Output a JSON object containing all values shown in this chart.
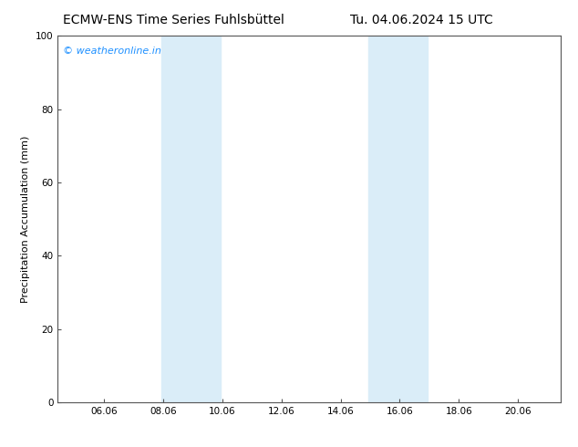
{
  "title_left": "ECMW-ENS Time Series Fuhlsbüttel",
  "title_right": "Tu. 04.06.2024 15 UTC",
  "ylabel": "Precipitation Accumulation (mm)",
  "xlim": [
    4.5,
    21.5
  ],
  "ylim": [
    0,
    100
  ],
  "yticks": [
    0,
    20,
    40,
    60,
    80,
    100
  ],
  "xticks": [
    6.06,
    8.06,
    10.06,
    12.06,
    14.06,
    16.06,
    18.06,
    20.06
  ],
  "xticklabels": [
    "06.06",
    "08.06",
    "10.06",
    "12.06",
    "14.06",
    "16.06",
    "18.06",
    "20.06"
  ],
  "shaded_bands": [
    {
      "xmin": 8.0,
      "xmax": 10.0
    },
    {
      "xmin": 15.0,
      "xmax": 17.0
    }
  ],
  "shade_color": "#daedf8",
  "background_color": "#ffffff",
  "watermark_text": "© weatheronline.in",
  "watermark_color": "#1e90ff",
  "title_fontsize": 10,
  "ylabel_fontsize": 8,
  "tick_fontsize": 7.5
}
